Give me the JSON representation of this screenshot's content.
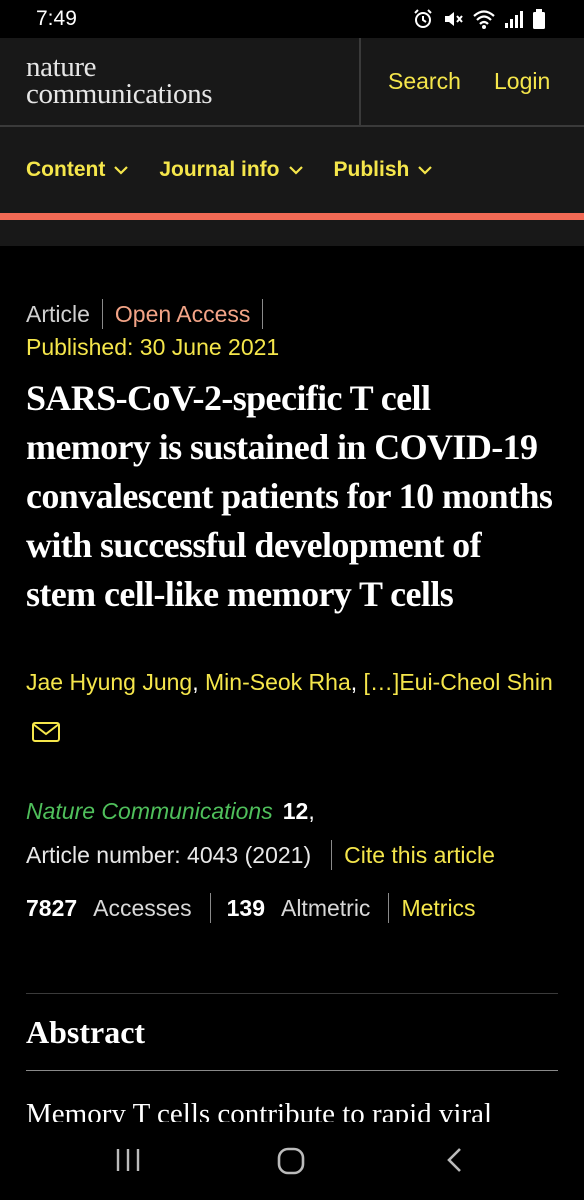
{
  "status_bar": {
    "time": "7:49",
    "icons": [
      "alarm-icon",
      "mute-icon",
      "wifi-icon",
      "signal-icon",
      "battery-icon"
    ]
  },
  "header": {
    "logo_line1": "nature",
    "logo_line2": "communications",
    "search_label": "Search",
    "login_label": "Login"
  },
  "nav": {
    "items": [
      {
        "label": "Content"
      },
      {
        "label": "Journal info"
      },
      {
        "label": "Publish"
      }
    ]
  },
  "article": {
    "type": "Article",
    "access": "Open Access",
    "published": "Published: 30 June 2021",
    "title": "SARS-CoV-2-specific T cell memory is sustained in COVID-19 convalescent patients for 10 months with successful development of stem cell-like memory T cells",
    "authors": {
      "first": "Jae Hyung Jung",
      "second": "Min-Seok Rha",
      "ellipsis": "[…]",
      "last": "Eui-Cheol Shin"
    },
    "journal": "Nature Communications",
    "volume": "12",
    "article_number": "Article number: 4043 (2021)",
    "cite_label": "Cite this article",
    "accesses_count": "7827",
    "accesses_label": "Accesses",
    "altmetric_count": "139",
    "altmetric_label": "Altmetric",
    "metrics_label": "Metrics"
  },
  "abstract": {
    "heading": "Abstract",
    "text": "Memory T cells contribute to rapid viral"
  },
  "colors": {
    "accent_yellow": "#f5e64b",
    "accent_red": "#f26a55",
    "open_access": "#f3a487",
    "journal_green": "#4fbf5b"
  }
}
